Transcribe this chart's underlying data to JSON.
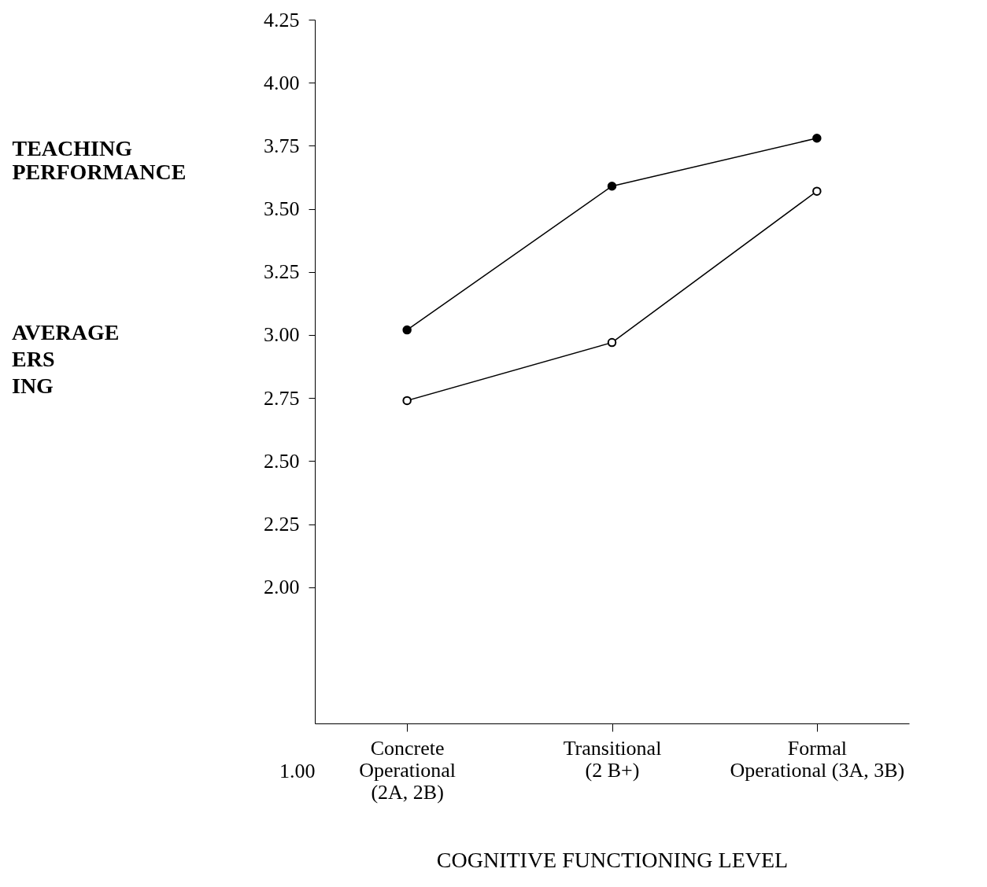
{
  "chart_data": {
    "type": "line",
    "xlabel": "COGNITIVE  FUNCTIONING  LEVEL",
    "ylabel": "TEACHING PERFORMANCE",
    "annotations": [
      "AVERAGE ERS ING",
      "1.00"
    ],
    "categories": [
      "Concrete\nOperational\n(2A, 2B)",
      "Transitional\n(2 B+)",
      "Formal\nOperational (3A, 3B)"
    ],
    "series": [
      {
        "color": "#000000",
        "values": [
          3.02,
          3.59,
          3.78
        ]
      },
      {
        "color": "#000000",
        "values": [
          2.74,
          2.97,
          3.57
        ]
      }
    ],
    "ylim": [
      1.46,
      4.25
    ],
    "yticks": [
      {
        "value": 2.0,
        "label": "2.00"
      },
      2.25,
      {
        "value": 2.5,
        "label": "2.50"
      },
      2.75,
      {
        "value": 3.0,
        "label": "3.00"
      },
      3.25,
      {
        "value": 3.5,
        "label": "3.50"
      },
      3.75,
      {
        "value": 4.0,
        "label": "4.00"
      },
      4.25
    ],
    "marker": "circle",
    "line_style": "solid"
  }
}
